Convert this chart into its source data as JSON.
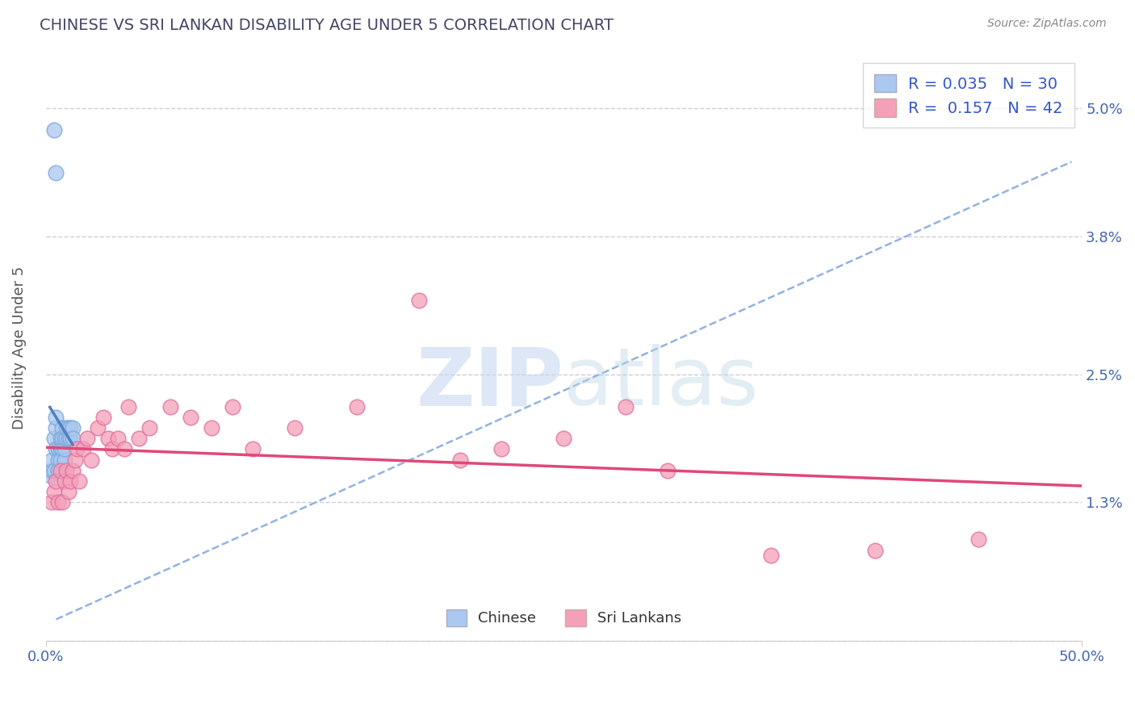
{
  "title": "CHINESE VS SRI LANKAN DISABILITY AGE UNDER 5 CORRELATION CHART",
  "source": "Source: ZipAtlas.com",
  "ylabel": "Disability Age Under 5",
  "xlim": [
    0.0,
    0.5
  ],
  "ylim": [
    0.0,
    0.055
  ],
  "xtick_vals": [
    0.0,
    0.5
  ],
  "xticklabels": [
    "0.0%",
    "50.0%"
  ],
  "ytick_vals": [
    0.0,
    0.013,
    0.025,
    0.038,
    0.05
  ],
  "yticklabels": [
    "",
    "1.3%",
    "2.5%",
    "3.8%",
    "5.0%"
  ],
  "chinese_R": 0.035,
  "chinese_N": 30,
  "srilanka_R": 0.157,
  "srilanka_N": 42,
  "chinese_color": "#aac8f0",
  "srilanka_color": "#f4a0b8",
  "chinese_edge_color": "#7aaada",
  "srilanka_edge_color": "#e070a0",
  "chinese_line_color": "#5080c0",
  "srilanka_line_color": "#e04878",
  "dashed_line_color": "#88aadd",
  "grid_color": "#ccccdd",
  "watermark_color": "#c8d8f0",
  "background_color": "#ffffff",
  "chinese_x": [
    0.002,
    0.003,
    0.003,
    0.004,
    0.004,
    0.005,
    0.005,
    0.005,
    0.006,
    0.006,
    0.006,
    0.007,
    0.007,
    0.007,
    0.008,
    0.008,
    0.008,
    0.009,
    0.009,
    0.009,
    0.01,
    0.01,
    0.011,
    0.011,
    0.012,
    0.012,
    0.013,
    0.013,
    0.005,
    0.004
  ],
  "chinese_y": [
    0.0155,
    0.016,
    0.017,
    0.016,
    0.019,
    0.018,
    0.02,
    0.021,
    0.017,
    0.018,
    0.016,
    0.018,
    0.019,
    0.017,
    0.018,
    0.02,
    0.019,
    0.017,
    0.018,
    0.019,
    0.019,
    0.02,
    0.019,
    0.02,
    0.019,
    0.02,
    0.02,
    0.019,
    0.044,
    0.048
  ],
  "srilanka_x": [
    0.003,
    0.004,
    0.005,
    0.006,
    0.007,
    0.008,
    0.009,
    0.01,
    0.011,
    0.012,
    0.013,
    0.014,
    0.015,
    0.016,
    0.018,
    0.02,
    0.022,
    0.025,
    0.028,
    0.03,
    0.032,
    0.035,
    0.038,
    0.04,
    0.045,
    0.05,
    0.06,
    0.07,
    0.08,
    0.09,
    0.1,
    0.12,
    0.15,
    0.18,
    0.2,
    0.22,
    0.25,
    0.28,
    0.3,
    0.35,
    0.4,
    0.45
  ],
  "srilanka_y": [
    0.013,
    0.014,
    0.015,
    0.013,
    0.016,
    0.013,
    0.015,
    0.016,
    0.014,
    0.015,
    0.016,
    0.017,
    0.018,
    0.015,
    0.018,
    0.019,
    0.017,
    0.02,
    0.021,
    0.019,
    0.018,
    0.019,
    0.018,
    0.022,
    0.019,
    0.02,
    0.022,
    0.021,
    0.02,
    0.022,
    0.018,
    0.02,
    0.022,
    0.032,
    0.017,
    0.018,
    0.019,
    0.022,
    0.016,
    0.008,
    0.0085,
    0.0095
  ]
}
